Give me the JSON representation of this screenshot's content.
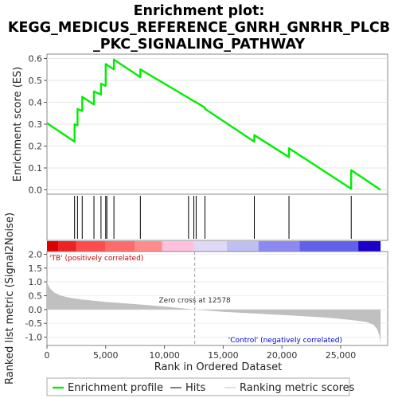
{
  "title_lines": [
    "Enrichment plot:",
    "KEGG_MEDICUS_REFERENCE_GNRH_GNRHR_PLCB",
    "_PKC_SIGNALING_PATHWAY"
  ],
  "colors": {
    "es_line": "#00ee00",
    "hits": "#000000",
    "metric_fill": "#c0c0c0",
    "positive_label": "#cc0000",
    "negative_label": "#0000cc",
    "zero_line": "#a0a0a0"
  },
  "chart_data": [
    {
      "type": "line",
      "name": "enrichment-profile",
      "ylabel": "Enrichment score (ES)",
      "xlim": [
        0,
        29000
      ],
      "ylim": [
        -0.02,
        0.62
      ],
      "yticks": [
        0.0,
        0.1,
        0.2,
        0.3,
        0.4,
        0.5,
        0.6
      ],
      "ytick_labels": [
        "0.0",
        "0.1",
        "0.2",
        "0.3",
        "0.4",
        "0.5",
        "0.6"
      ],
      "series": [
        {
          "name": "Enrichment profile",
          "x": [
            0,
            2350,
            2350,
            2600,
            2600,
            3000,
            3000,
            4000,
            4000,
            4600,
            4600,
            5000,
            5000,
            5700,
            5700,
            7950,
            7950,
            12050,
            12500,
            12700,
            13450,
            13450,
            17650,
            17650,
            20600,
            20600,
            25900,
            25900,
            28400
          ],
          "y": [
            0.305,
            0.22,
            0.3,
            0.295,
            0.37,
            0.36,
            0.425,
            0.39,
            0.45,
            0.435,
            0.485,
            0.475,
            0.575,
            0.55,
            0.595,
            0.515,
            0.55,
            0.42,
            0.405,
            0.4,
            0.375,
            0.37,
            0.22,
            0.25,
            0.15,
            0.19,
            0.005,
            0.09,
            0.0
          ]
        }
      ]
    },
    {
      "type": "scatter",
      "name": "hits",
      "x": [
        2350,
        2600,
        3000,
        4000,
        4600,
        5000,
        5100,
        5700,
        7950,
        12050,
        12500,
        12700,
        13450,
        17650,
        20600,
        25900
      ]
    },
    {
      "type": "area",
      "name": "ranked-list-metric",
      "xlabel": "Rank in Ordered Dataset",
      "ylabel": "Ranked list metric (Signal2Noise)",
      "xlim": [
        0,
        29000
      ],
      "ylim": [
        -1.3,
        2.1
      ],
      "xticks": [
        0,
        5000,
        10000,
        15000,
        20000,
        25000
      ],
      "xtick_labels": [
        "0",
        "5,000",
        "10,000",
        "15,000",
        "20,000",
        "25,000"
      ],
      "yticks": [
        2.0,
        1.5,
        1.0,
        0.5,
        0.0,
        -0.5,
        -1.0
      ],
      "ytick_labels": [
        "2.0",
        "1.5",
        "1.0",
        "0.5",
        "0.0",
        "-0.5",
        "-1.0"
      ],
      "series": [
        {
          "name": "Ranking metric scores",
          "x": [
            0,
            200,
            600,
            1200,
            2000,
            3000,
            5000,
            8000,
            10000,
            12578,
            15000,
            18000,
            21000,
            24000,
            26000,
            27200,
            27800,
            28100,
            28300,
            28400
          ],
          "y": [
            1.0,
            0.8,
            0.62,
            0.5,
            0.42,
            0.36,
            0.28,
            0.18,
            0.11,
            0.0,
            -0.08,
            -0.15,
            -0.22,
            -0.3,
            -0.38,
            -0.45,
            -0.55,
            -0.7,
            -0.95,
            -1.25
          ]
        }
      ],
      "zero_cross": 12578,
      "annotations": [
        "Zero cross at 12578",
        "'TB' (positively correlated)",
        "'Control' (negatively correlated)"
      ]
    }
  ],
  "legend": {
    "items": [
      {
        "label": "Enrichment profile",
        "color": "#00ee00"
      },
      {
        "label": "Hits",
        "color": "#000000"
      },
      {
        "label": "Ranking metric scores",
        "color": "#c0c0c0"
      }
    ]
  },
  "heatbar": {
    "segments": [
      {
        "from": 0,
        "to": 1000,
        "color": "#dd0000"
      },
      {
        "from": 1000,
        "to": 2500,
        "color": "#ee2222"
      },
      {
        "from": 2500,
        "to": 5000,
        "color": "#ff4d4d"
      },
      {
        "from": 5000,
        "to": 7500,
        "color": "#ff6b6b"
      },
      {
        "from": 7500,
        "to": 9800,
        "color": "#ff8c8c"
      },
      {
        "from": 9800,
        "to": 12500,
        "color": "#ffc0dd"
      },
      {
        "from": 12500,
        "to": 15300,
        "color": "#e0d8f8"
      },
      {
        "from": 15300,
        "to": 18000,
        "color": "#c0bff2"
      },
      {
        "from": 18000,
        "to": 21500,
        "color": "#8a8af2"
      },
      {
        "from": 21500,
        "to": 26500,
        "color": "#6060e8"
      },
      {
        "from": 26500,
        "to": 28400,
        "color": "#1a00c8"
      }
    ]
  }
}
